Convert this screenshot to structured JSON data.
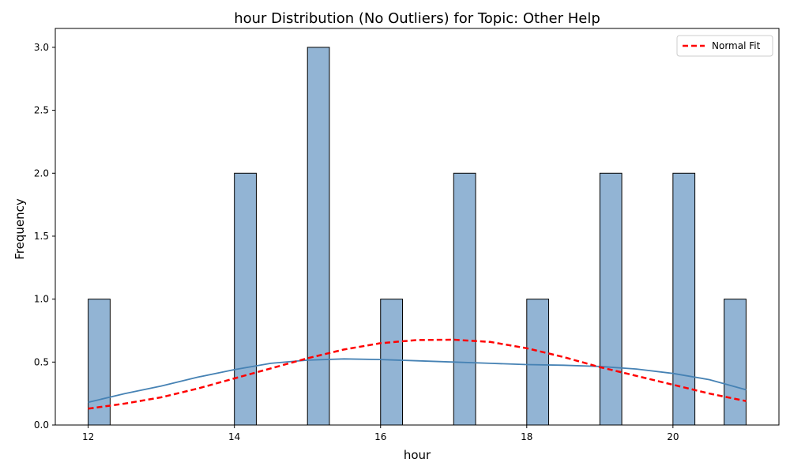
{
  "chart_data": {
    "type": "bar",
    "title": "hour Distribution (No Outliers) for Topic: Other Help",
    "xlabel": "hour",
    "ylabel": "Frequency",
    "xlim": [
      11.55,
      21.45
    ],
    "ylim": [
      0,
      3.15
    ],
    "xticks": [
      12,
      14,
      16,
      18,
      20
    ],
    "yticks": [
      0.0,
      0.5,
      1.0,
      1.5,
      2.0,
      2.5,
      3.0
    ],
    "xtick_labels": [
      "12",
      "14",
      "16",
      "18",
      "20"
    ],
    "ytick_labels": [
      "0.0",
      "0.5",
      "1.0",
      "1.5",
      "2.0",
      "2.5",
      "3.0"
    ],
    "bin_width": 0.3,
    "bins": [
      {
        "x0": 12.0,
        "x1": 12.3,
        "count": 1
      },
      {
        "x0": 14.0,
        "x1": 14.3,
        "count": 2
      },
      {
        "x0": 15.0,
        "x1": 15.3,
        "count": 3
      },
      {
        "x0": 16.0,
        "x1": 16.3,
        "count": 1
      },
      {
        "x0": 17.0,
        "x1": 17.3,
        "count": 2
      },
      {
        "x0": 18.0,
        "x1": 18.3,
        "count": 1
      },
      {
        "x0": 19.0,
        "x1": 19.3,
        "count": 2
      },
      {
        "x0": 20.0,
        "x1": 20.3,
        "count": 2
      },
      {
        "x0": 20.7,
        "x1": 21.0,
        "count": 1
      }
    ],
    "series": [
      {
        "name": "Normal Fit",
        "kind": "line",
        "style": "dashed",
        "color": "#ff0000",
        "x": [
          12,
          12.5,
          13,
          13.5,
          14,
          14.5,
          15,
          15.5,
          16,
          16.5,
          17,
          17.5,
          18,
          18.5,
          19,
          19.5,
          20,
          20.5,
          21
        ],
        "y": [
          0.13,
          0.17,
          0.22,
          0.29,
          0.37,
          0.45,
          0.53,
          0.6,
          0.65,
          0.675,
          0.678,
          0.66,
          0.61,
          0.54,
          0.46,
          0.39,
          0.32,
          0.25,
          0.19
        ]
      },
      {
        "kind": "line",
        "style": "solid",
        "color": "#4682b4",
        "x": [
          12,
          12.5,
          13,
          13.5,
          14,
          14.5,
          15,
          15.5,
          16,
          16.5,
          17,
          17.5,
          18,
          18.5,
          19,
          19.5,
          20,
          20.5,
          21
        ],
        "y": [
          0.18,
          0.25,
          0.31,
          0.38,
          0.44,
          0.49,
          0.515,
          0.525,
          0.52,
          0.51,
          0.5,
          0.49,
          0.48,
          0.475,
          0.465,
          0.445,
          0.41,
          0.36,
          0.28
        ]
      }
    ],
    "legend": {
      "position": "top-right",
      "entries": [
        "Normal Fit"
      ]
    },
    "grid": false,
    "colors": {
      "bar_fill": "#92b4d4",
      "bar_edge": "#000000",
      "fit_line": "#ff0000",
      "kde_line": "#4682b4"
    }
  }
}
